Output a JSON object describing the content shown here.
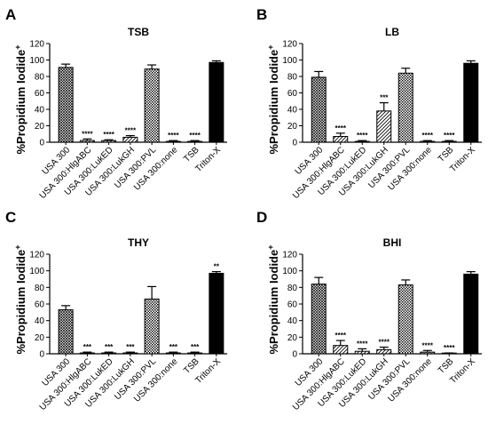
{
  "figure": {
    "ylabel_main": "%Propidium Iodide",
    "ylabel_sup": "+"
  },
  "chart_data": [
    {
      "type": "bar",
      "panel_letter": "A",
      "title": "TSB",
      "categories": [
        "USA 300",
        "USA 300:HlgABC",
        "USA 300:LukED",
        "USA 300:LukGH",
        "USA 300:PVL",
        "USA 300:none",
        "TSB",
        "Triton-X"
      ],
      "values": [
        91,
        2,
        2,
        6,
        89,
        1,
        1,
        97
      ],
      "errors": [
        4,
        2,
        1,
        2,
        5,
        1,
        1,
        2
      ],
      "significance": [
        "",
        "****",
        "****",
        "****",
        "",
        "****",
        "****",
        ""
      ],
      "yticks": [
        0,
        20,
        40,
        60,
        80,
        100,
        120
      ],
      "ylim": [
        0,
        120
      ]
    },
    {
      "type": "bar",
      "panel_letter": "B",
      "title": "LB",
      "categories": [
        "USA 300",
        "USA 300:HlgABC",
        "USA 300:LukED",
        "USA 300:LukGH",
        "USA 300:PVL",
        "USA 300:none",
        "TSB",
        "Triton-X"
      ],
      "values": [
        79,
        7,
        1,
        38,
        84,
        1,
        1,
        96
      ],
      "errors": [
        7,
        4,
        1,
        10,
        6,
        1,
        1,
        3
      ],
      "significance": [
        "",
        "****",
        "****",
        "***",
        "",
        "****",
        "****",
        ""
      ],
      "yticks": [
        0,
        20,
        40,
        60,
        80,
        100,
        120
      ],
      "ylim": [
        0,
        120
      ]
    },
    {
      "type": "bar",
      "panel_letter": "C",
      "title": "THY",
      "categories": [
        "USA 300",
        "USA 300:HlgABC",
        "USA 300:LukED",
        "USA 300:LukGH",
        "USA 300:PVL",
        "USA 300:none",
        "TSB",
        "Triton-X"
      ],
      "values": [
        53,
        1,
        1,
        1,
        66,
        1,
        1,
        97
      ],
      "errors": [
        5,
        1,
        1,
        1,
        15,
        1,
        1,
        2
      ],
      "significance": [
        "",
        "***",
        "***",
        "***",
        "",
        "***",
        "***",
        "**"
      ],
      "yticks": [
        0,
        20,
        40,
        60,
        80,
        100,
        120
      ],
      "ylim": [
        0,
        120
      ]
    },
    {
      "type": "bar",
      "panel_letter": "D",
      "title": "BHI",
      "categories": [
        "USA 300",
        "USA 300:HlgABC",
        "USA 300:LukED",
        "USA 300:LukGH",
        "USA 300:PVL",
        "USA 300:none",
        "TSB",
        "Triton-X"
      ],
      "values": [
        84,
        10,
        3,
        5,
        83,
        2,
        0,
        96
      ],
      "errors": [
        8,
        6,
        3,
        3,
        6,
        2,
        1,
        3
      ],
      "significance": [
        "",
        "****",
        "****",
        "****",
        "",
        "****",
        "****",
        ""
      ],
      "yticks": [
        0,
        20,
        40,
        60,
        80,
        100,
        120
      ],
      "ylim": [
        0,
        120
      ]
    }
  ]
}
